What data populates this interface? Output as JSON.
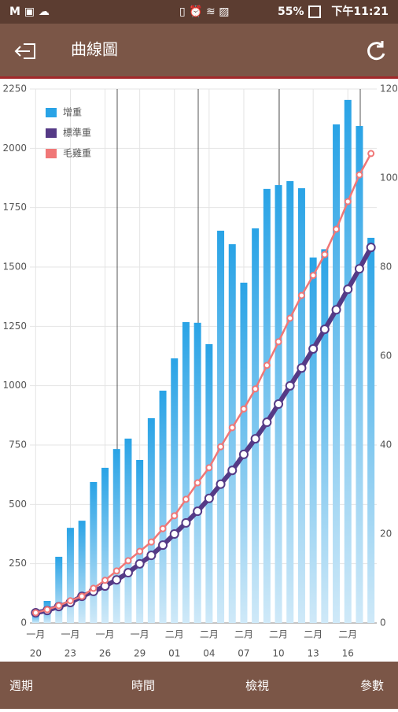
{
  "status_bar": {
    "battery": "55%",
    "time": "下午11:21"
  },
  "toolbar": {
    "title": "曲線圖"
  },
  "chart_data": {
    "type": "combo",
    "categories": [
      "20",
      null,
      null,
      "23",
      null,
      null,
      "26",
      null,
      null,
      "29",
      null,
      null,
      "01",
      null,
      null,
      "04",
      null,
      null,
      "07",
      null,
      null,
      "10",
      null,
      null,
      "13",
      null,
      null,
      "16",
      null,
      null
    ],
    "category_months": [
      "一月",
      null,
      null,
      "一月",
      null,
      null,
      "一月",
      null,
      null,
      "一月",
      null,
      null,
      "二月",
      null,
      null,
      "二月",
      null,
      null,
      "二月",
      null,
      null,
      "二月",
      null,
      null,
      "二月",
      null,
      null,
      "二月",
      null,
      null
    ],
    "ylim": [
      0,
      2250
    ],
    "yticks": [
      0,
      250,
      500,
      750,
      1000,
      1250,
      1500,
      1750,
      2000,
      2250
    ],
    "y2lim": [
      0,
      120
    ],
    "y2ticks": [
      0,
      20,
      40,
      60,
      80,
      100,
      120
    ],
    "grid": true,
    "legend": "top-left",
    "series": [
      {
        "name": "增重",
        "type": "bar",
        "color": "#29a3e6",
        "values": [
          40,
          93,
          279,
          401,
          431,
          594,
          654,
          733,
          777,
          687,
          863,
          979,
          1115,
          1268,
          1265,
          1175,
          1653,
          1596,
          1434,
          1663,
          1829,
          1845,
          1862,
          1832,
          1540,
          1575,
          2101,
          2204,
          2094,
          1623
        ]
      },
      {
        "name": "標準重",
        "type": "line",
        "axis": "y2",
        "color": "#553a86",
        "values": [
          2.3,
          2.8,
          3.7,
          4.6,
          6.0,
          7.1,
          8.3,
          9.7,
          11.3,
          13.3,
          15.2,
          17.5,
          20,
          22.5,
          25.1,
          28,
          31.2,
          34.3,
          37.9,
          41.4,
          45.1,
          49.2,
          53.3,
          57.3,
          61.6,
          66,
          70.4,
          75,
          79.6,
          84.4
        ]
      },
      {
        "name": "毛雞重",
        "type": "line",
        "axis": "y2",
        "color": "#f07777",
        "values": [
          2.3,
          3,
          3.9,
          5,
          6,
          7.8,
          9.6,
          11.7,
          14,
          16.1,
          18.2,
          21.2,
          24.1,
          27.8,
          31.5,
          34.9,
          39.6,
          43.9,
          48.1,
          52.6,
          57.9,
          63.2,
          68.5,
          73.6,
          78.1,
          82.8,
          88.5,
          94.7,
          100.7,
          105.5
        ]
      }
    ]
  },
  "bottom_nav": [
    "週期",
    "時間",
    "檢視",
    "參數"
  ]
}
